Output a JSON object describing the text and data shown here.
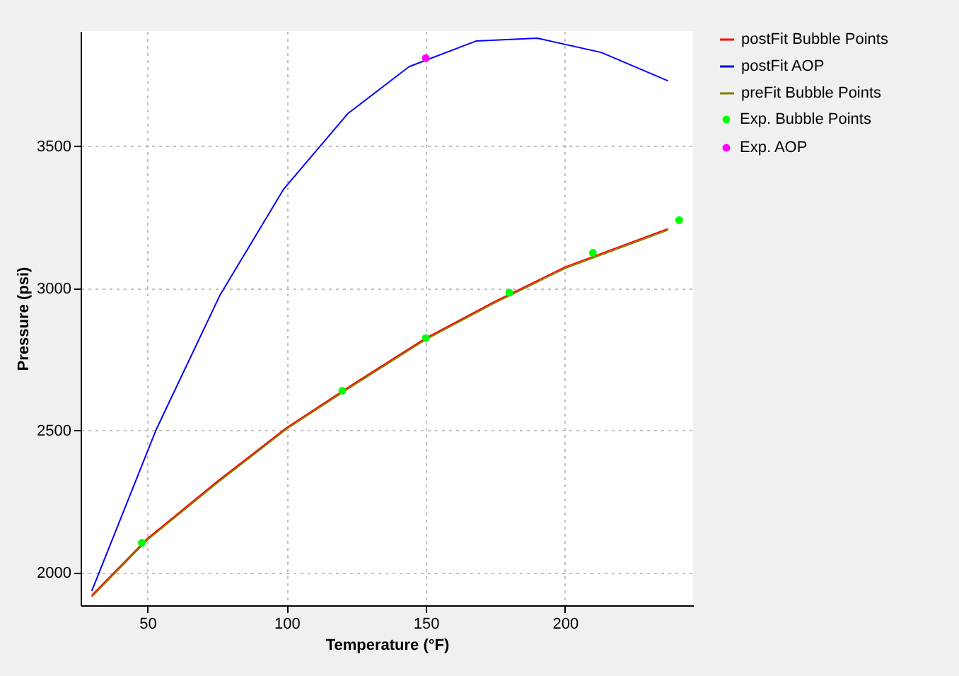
{
  "chart_data": {
    "type": "line",
    "xlabel": "Temperature (°F)",
    "ylabel": "Pressure (psi)",
    "xlim": [
      26,
      246
    ],
    "ylim": [
      1885,
      3905
    ],
    "xticks": [
      50,
      100,
      150,
      200
    ],
    "yticks": [
      2000,
      2500,
      3000,
      3500
    ],
    "grid": true,
    "legend": "right",
    "series": [
      {
        "name": "postFit Bubble Points",
        "color": "#ff0000",
        "x": [
          30,
          50,
          75,
          100,
          125,
          150,
          175,
          200,
          237
        ],
        "values": [
          1920,
          2120,
          2320,
          2510,
          2670,
          2825,
          2955,
          3075,
          3210
        ]
      },
      {
        "name": "postFit AOP",
        "color": "#0000ff",
        "x": [
          30,
          53,
          76,
          99,
          122,
          144,
          168,
          190,
          213,
          237
        ],
        "values": [
          1935,
          2500,
          2975,
          3350,
          3615,
          3780,
          3870,
          3880,
          3830,
          3730
        ]
      },
      {
        "name": "preFit Bubble Points",
        "color": "#808000",
        "x": [
          30,
          50,
          75,
          100,
          125,
          150,
          175,
          200,
          237
        ],
        "values": [
          1915,
          2115,
          2315,
          2505,
          2665,
          2820,
          2950,
          3070,
          3205
        ]
      },
      {
        "name": "Exp. Bubble Points",
        "type": "scatter",
        "color": "#00ff00",
        "marker": "circle",
        "x": [
          48,
          120,
          150,
          180,
          210,
          241
        ],
        "values": [
          2105,
          2640,
          2825,
          2985,
          3125,
          3240
        ]
      },
      {
        "name": "Exp. AOP",
        "type": "scatter",
        "color": "#ff00ff",
        "marker": "circle",
        "x": [
          150
        ],
        "values": [
          3810
        ]
      }
    ]
  }
}
